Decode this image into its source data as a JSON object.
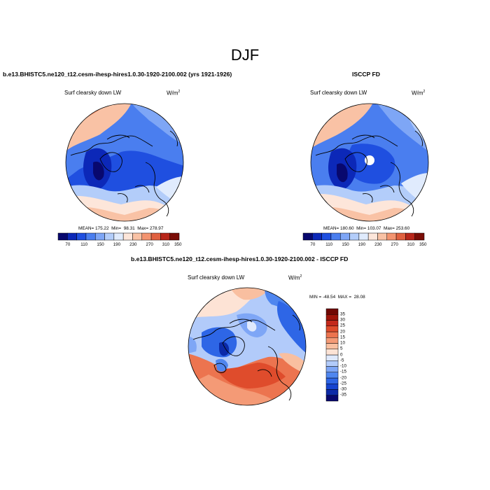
{
  "page_title": "DJF",
  "colors": {
    "model_scale": [
      "#08086e",
      "#0c28b8",
      "#1f4fe0",
      "#4a7eef",
      "#7ea6f6",
      "#b3cdfa",
      "#e0ebfd",
      "#fde6da",
      "#f9c2a5",
      "#f39470",
      "#e0603f",
      "#b8261a",
      "#7a0d06"
    ],
    "diff_scale": [
      "#08086e",
      "#0c2aa8",
      "#1644d0",
      "#2e66e6",
      "#4f86ef",
      "#7ea6f6",
      "#b2cbfa",
      "#dfe9fd",
      "#fde3d5",
      "#f9bfa0",
      "#f49a76",
      "#ec744f",
      "#df4c2c",
      "#c3291b",
      "#9e1409",
      "#700803"
    ]
  },
  "chart_data": [
    {
      "type": "polar-map",
      "panel": "model",
      "title": "b.e13.BHISTC5.ne120_t12.cesm-ihesp-hires1.0.30-1920-2100.002 (yrs 1921-1926)",
      "variable": "Surf clearsky down LW",
      "units_base": "W/m",
      "units_exp": "2",
      "stats": {
        "mean_label": "MEAN=",
        "mean": "175.22",
        "min_label": "Min=",
        "min": "98.31",
        "max_label": "Max=",
        "max": "278.97"
      },
      "colorbar_ticks": [
        "70",
        "110",
        "150",
        "190",
        "230",
        "270",
        "310",
        "350"
      ]
    },
    {
      "type": "polar-map",
      "panel": "obs",
      "title": "ISCCP FD",
      "variable": "Surf clearsky down LW",
      "units_base": "W/m",
      "units_exp": "2",
      "stats": {
        "mean_label": "MEAN=",
        "mean": "180.60",
        "min_label": "Min=",
        "min": "103.07",
        "max_label": "Max=",
        "max": "253.60"
      },
      "colorbar_ticks": [
        "70",
        "110",
        "150",
        "190",
        "230",
        "270",
        "310",
        "350"
      ]
    },
    {
      "type": "polar-map",
      "panel": "difference",
      "title": "b.e13.BHISTC5.ne120_t12.cesm-ihesp-hires1.0.30-1920-2100.002 - ISCCP FD",
      "variable": "Surf clearsky down LW",
      "units_base": "W/m",
      "units_exp": "2",
      "stats": {
        "min_label": "MIN =",
        "min": "-48.54",
        "max_label": "MAX =",
        "max": "28.08"
      },
      "colorbar_ticks": [
        "35",
        "30",
        "25",
        "20",
        "15",
        "10",
        "5",
        "0",
        "-5",
        "-10",
        "-15",
        "-20",
        "-25",
        "-30",
        "-35"
      ]
    }
  ]
}
